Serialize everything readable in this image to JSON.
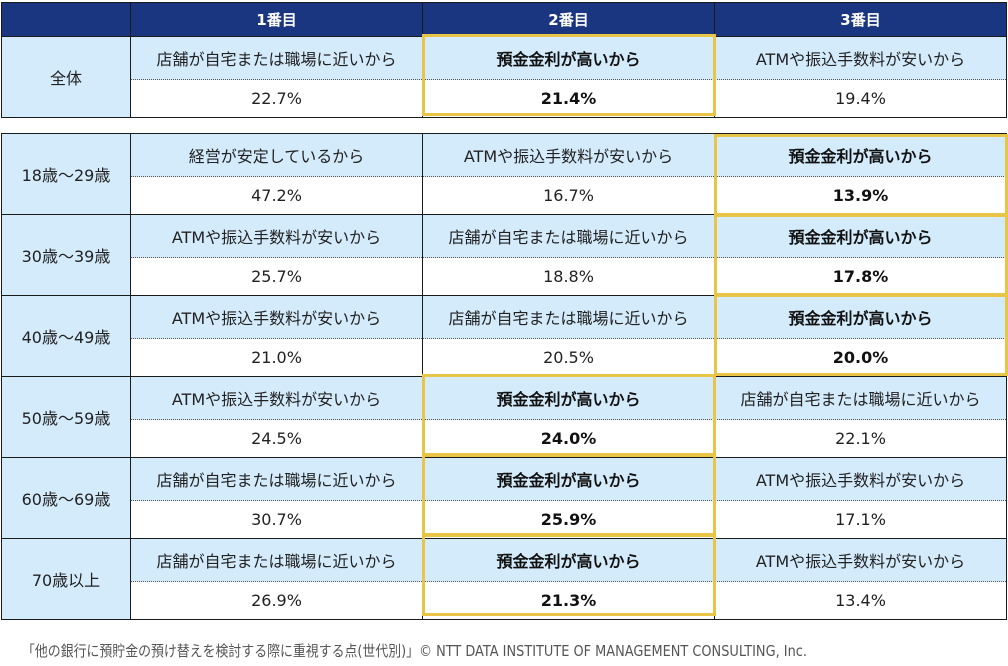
{
  "header": {
    "col1": "1番目",
    "col2": "2番目",
    "col3": "3番目"
  },
  "overall": {
    "label": "全体",
    "cells": [
      {
        "reason": "店舗が自宅または職場に近いから",
        "value": "22.7%",
        "highlight": false
      },
      {
        "reason": "預金金利が高いから",
        "value": "21.4%",
        "highlight": true
      },
      {
        "reason": "ATMや振込手数料が安いから",
        "value": "19.4%",
        "highlight": false
      }
    ]
  },
  "age_groups": [
    {
      "label": "18歳～29歳",
      "cells": [
        {
          "reason": "経営が安定しているから",
          "value": "47.2%",
          "highlight": false
        },
        {
          "reason": "ATMや振込手数料が安いから",
          "value": "16.7%",
          "highlight": false
        },
        {
          "reason": "預金金利が高いから",
          "value": "13.9%",
          "highlight": true
        }
      ]
    },
    {
      "label": "30歳～39歳",
      "cells": [
        {
          "reason": "ATMや振込手数料が安いから",
          "value": "25.7%",
          "highlight": false
        },
        {
          "reason": "店舗が自宅または職場に近いから",
          "value": "18.8%",
          "highlight": false
        },
        {
          "reason": "預金金利が高いから",
          "value": "17.8%",
          "highlight": true
        }
      ]
    },
    {
      "label": "40歳～49歳",
      "cells": [
        {
          "reason": "ATMや振込手数料が安いから",
          "value": "21.0%",
          "highlight": false
        },
        {
          "reason": "店舗が自宅または職場に近いから",
          "value": "20.5%",
          "highlight": false
        },
        {
          "reason": "預金金利が高いから",
          "value": "20.0%",
          "highlight": true
        }
      ]
    },
    {
      "label": "50歳～59歳",
      "cells": [
        {
          "reason": "ATMや振込手数料が安いから",
          "value": "24.5%",
          "highlight": false
        },
        {
          "reason": "預金金利が高いから",
          "value": "24.0%",
          "highlight": true
        },
        {
          "reason": "店舗が自宅または職場に近いから",
          "value": "22.1%",
          "highlight": false
        }
      ]
    },
    {
      "label": "60歳～69歳",
      "cells": [
        {
          "reason": "店舗が自宅または職場に近いから",
          "value": "30.7%",
          "highlight": false
        },
        {
          "reason": "預金金利が高いから",
          "value": "25.9%",
          "highlight": true
        },
        {
          "reason": "ATMや振込手数料が安いから",
          "value": "17.1%",
          "highlight": false
        }
      ]
    },
    {
      "label": "70歳以上",
      "cells": [
        {
          "reason": "店舗が自宅または職場に近いから",
          "value": "26.9%",
          "highlight": false
        },
        {
          "reason": "預金金利が高いから",
          "value": "21.3%",
          "highlight": true
        },
        {
          "reason": "ATMや振込手数料が安いから",
          "value": "13.4%",
          "highlight": false
        }
      ]
    }
  ],
  "footer": {
    "caption": "「他の銀行に預貯金の預け替えを検討する際に重視する点(世代別)」© NTT DATA INSTITUTE OF MANAGEMENT CONSULTING, Inc."
  },
  "colors": {
    "header_bg": "#1b3680",
    "label_bg": "#d4ebfc",
    "highlight_border": "#e8c547"
  }
}
